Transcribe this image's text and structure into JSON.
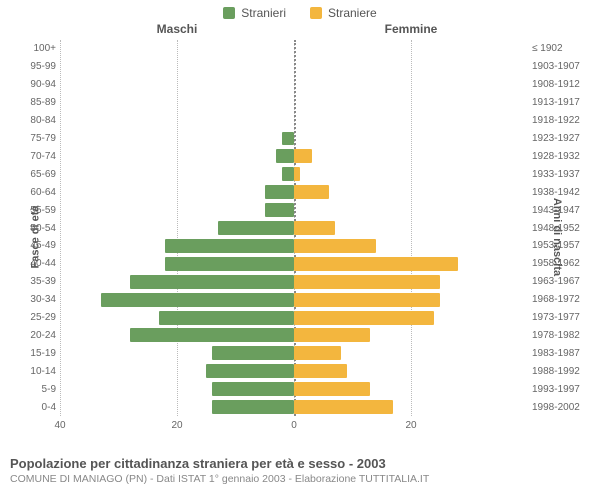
{
  "legend": {
    "male": {
      "label": "Stranieri",
      "color": "#6a9e5e"
    },
    "female": {
      "label": "Straniere",
      "color": "#f3b63e"
    }
  },
  "chart": {
    "type": "population-pyramid",
    "col_header_left": "Maschi",
    "col_header_right": "Femmine",
    "axis_left_label": "Fasce di età",
    "axis_right_label": "Anni di nascita",
    "x_max": 40,
    "x_ticks_left": [
      40,
      20,
      0
    ],
    "x_ticks_right": [
      0,
      20
    ],
    "grid_color": "#bbbbbb",
    "center_color": "#888888",
    "background_color": "#ffffff",
    "tick_fontsize": 10,
    "header_fontsize": 12,
    "bar_height_pct": 78,
    "rows": [
      {
        "age": "100+",
        "years": "≤ 1902",
        "m": 0,
        "f": 0
      },
      {
        "age": "95-99",
        "years": "1903-1907",
        "m": 0,
        "f": 0
      },
      {
        "age": "90-94",
        "years": "1908-1912",
        "m": 0,
        "f": 0
      },
      {
        "age": "85-89",
        "years": "1913-1917",
        "m": 0,
        "f": 0
      },
      {
        "age": "80-84",
        "years": "1918-1922",
        "m": 0,
        "f": 0
      },
      {
        "age": "75-79",
        "years": "1923-1927",
        "m": 2,
        "f": 0
      },
      {
        "age": "70-74",
        "years": "1928-1932",
        "m": 3,
        "f": 3
      },
      {
        "age": "65-69",
        "years": "1933-1937",
        "m": 2,
        "f": 1
      },
      {
        "age": "60-64",
        "years": "1938-1942",
        "m": 5,
        "f": 6
      },
      {
        "age": "55-59",
        "years": "1943-1947",
        "m": 5,
        "f": 0
      },
      {
        "age": "50-54",
        "years": "1948-1952",
        "m": 13,
        "f": 7
      },
      {
        "age": "45-49",
        "years": "1953-1957",
        "m": 22,
        "f": 14
      },
      {
        "age": "40-44",
        "years": "1958-1962",
        "m": 22,
        "f": 28
      },
      {
        "age": "35-39",
        "years": "1963-1967",
        "m": 28,
        "f": 25
      },
      {
        "age": "30-34",
        "years": "1968-1972",
        "m": 33,
        "f": 25
      },
      {
        "age": "25-29",
        "years": "1973-1977",
        "m": 23,
        "f": 24
      },
      {
        "age": "20-24",
        "years": "1978-1982",
        "m": 28,
        "f": 13
      },
      {
        "age": "15-19",
        "years": "1983-1987",
        "m": 14,
        "f": 8
      },
      {
        "age": "10-14",
        "years": "1988-1992",
        "m": 15,
        "f": 9
      },
      {
        "age": "5-9",
        "years": "1993-1997",
        "m": 14,
        "f": 13
      },
      {
        "age": "0-4",
        "years": "1998-2002",
        "m": 14,
        "f": 17
      }
    ]
  },
  "caption": {
    "title": "Popolazione per cittadinanza straniera per età e sesso - 2003",
    "subtitle": "COMUNE DI MANIAGO (PN) - Dati ISTAT 1° gennaio 2003 - Elaborazione TUTTITALIA.IT"
  }
}
